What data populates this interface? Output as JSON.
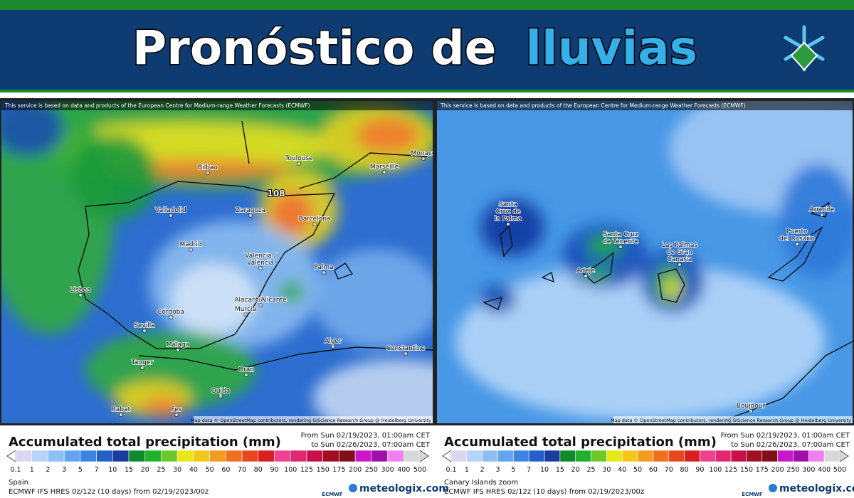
{
  "header": {
    "title_main": "Pronóstico de",
    "title_highlight": "lluvias"
  },
  "attribution": "This service is based on data and products of the European Centre for Medium-range Weather Forecasts (ECMWF)",
  "map_credit": "Map data © OpenStreetMap contributors, rendering GIScience Research Group @ Heidelberg University",
  "legend": {
    "title": "Accumulated total precipitation (mm)",
    "date_from": "From Sun 02/19/2023, 01:00am CET",
    "date_to": "to Sun 02/26/2023, 07:00am CET",
    "ticks": [
      0.1,
      1,
      2,
      3,
      5,
      7,
      10,
      15,
      20,
      25,
      30,
      40,
      50,
      60,
      70,
      80,
      90,
      100,
      125,
      150,
      175,
      200,
      250,
      300,
      400,
      500
    ],
    "colors": [
      "#ddd6f2",
      "#b4d4f8",
      "#8cc0f4",
      "#64a4ec",
      "#3c84e0",
      "#2260c8",
      "#1a3c9c",
      "#0e8a2c",
      "#20b030",
      "#6cc828",
      "#e8e818",
      "#f4c818",
      "#f49c20",
      "#f07020",
      "#e84820",
      "#d82020",
      "#f04090",
      "#e02870",
      "#c81048",
      "#a01020",
      "#801018",
      "#c818c8",
      "#a010a8",
      "#f080f0",
      "#d8d8d8"
    ],
    "model": "ECMWF IFS HRES 0z/12z (10 days) from 02/19/2023/00z",
    "ecmwf": "ECMWF",
    "brand": "meteologix.com"
  },
  "panels": [
    {
      "region": "Spain",
      "peak": "108",
      "cities": [
        {
          "lines": [
            "Bilbao"
          ]
        },
        {
          "lines": [
            "Toulouse"
          ]
        },
        {
          "lines": [
            "Marseille"
          ]
        },
        {
          "lines": [
            "Monaco"
          ]
        },
        {
          "lines": [
            "Valladolid"
          ]
        },
        {
          "lines": [
            "Zaragoza"
          ]
        },
        {
          "lines": [
            "Barcelona"
          ]
        },
        {
          "lines": [
            "Madrid"
          ]
        },
        {
          "lines": [
            "Valencia /",
            "València"
          ]
        },
        {
          "lines": [
            "Palma"
          ]
        },
        {
          "lines": [
            "Lisboa"
          ]
        },
        {
          "lines": [
            "Alacant/Alicante"
          ]
        },
        {
          "lines": [
            "Murcia"
          ]
        },
        {
          "lines": [
            "Córdoba"
          ]
        },
        {
          "lines": [
            "Sevilla"
          ]
        },
        {
          "lines": [
            "Málaga"
          ]
        },
        {
          "lines": [
            "Alger"
          ]
        },
        {
          "lines": [
            "Constantine"
          ]
        },
        {
          "lines": [
            "Tanger"
          ]
        },
        {
          "lines": [
            "Oran"
          ]
        },
        {
          "lines": [
            "Oujda"
          ]
        },
        {
          "lines": [
            "Rabat"
          ]
        },
        {
          "lines": [
            "Fes"
          ]
        }
      ]
    },
    {
      "region": "Canary Islands zoom",
      "cities": [
        {
          "lines": [
            "Santa",
            "Cruz de",
            "la Palma"
          ]
        },
        {
          "lines": [
            "Santa Cruz",
            "de Tenerife"
          ]
        },
        {
          "lines": [
            "Adeje"
          ]
        },
        {
          "lines": [
            "Las Palmas",
            "de Gran",
            "Canaria"
          ]
        },
        {
          "lines": [
            "Arrecife"
          ]
        },
        {
          "lines": [
            "Puerto",
            "del Rosario"
          ]
        },
        {
          "lines": [
            "Boujdour"
          ]
        }
      ]
    }
  ]
}
